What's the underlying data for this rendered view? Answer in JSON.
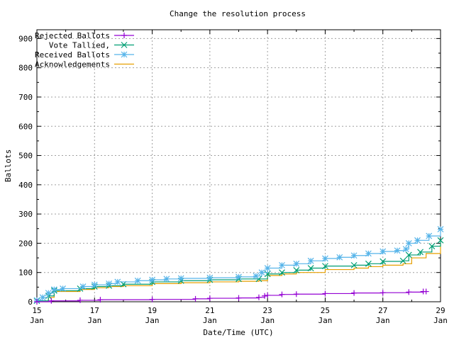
{
  "chart_data": {
    "type": "line",
    "title": "Change the resolution process",
    "xlabel": "Date/Time (UTC)",
    "ylabel": "Ballots",
    "ylim": [
      0,
      930
    ],
    "xlim": [
      "01-15 00:00",
      "01-29 00:00"
    ],
    "yticks": [
      0,
      100,
      200,
      300,
      400,
      500,
      600,
      700,
      800,
      900
    ],
    "xticks": [
      {
        "day": "15",
        "month": "Jan",
        "x": "01-15 00:00"
      },
      {
        "day": "17",
        "month": "Jan",
        "x": "01-17 00:00"
      },
      {
        "day": "19",
        "month": "Jan",
        "x": "01-19 00:00"
      },
      {
        "day": "21",
        "month": "Jan",
        "x": "01-21 00:00"
      },
      {
        "day": "23",
        "month": "Jan",
        "x": "01-23 00:00"
      },
      {
        "day": "25",
        "month": "Jan",
        "x": "01-25 00:00"
      },
      {
        "day": "27",
        "month": "Jan",
        "x": "01-27 00:00"
      },
      {
        "day": "29",
        "month": "Jan",
        "x": "01-29 00:00"
      }
    ],
    "grid": true,
    "legend_placement": "top-left",
    "series": [
      {
        "name": "Rejected Ballots",
        "color": "#9400d3",
        "marker": "plus",
        "points": [
          [
            "01-15 00:00",
            0
          ],
          [
            "01-15 12:00",
            3
          ],
          [
            "01-16 12:00",
            5
          ],
          [
            "01-17 04:48",
            7
          ],
          [
            "01-19 00:00",
            8
          ],
          [
            "01-20 12:00",
            10
          ],
          [
            "01-21 00:00",
            12
          ],
          [
            "01-22 00:00",
            13
          ],
          [
            "01-22 16:48",
            15
          ],
          [
            "01-22 21:36",
            20
          ],
          [
            "01-23 00:00",
            22
          ],
          [
            "01-23 12:00",
            25
          ],
          [
            "01-24 00:00",
            26
          ],
          [
            "01-25 00:00",
            28
          ],
          [
            "01-26 00:00",
            30
          ],
          [
            "01-27 00:00",
            31
          ],
          [
            "01-27 21:36",
            33
          ],
          [
            "01-28 09:36",
            35
          ],
          [
            "01-28 12:00",
            35
          ]
        ]
      },
      {
        "name": "Vote Tallied,",
        "color": "#009e73",
        "marker": "cross",
        "points": [
          [
            "01-15 00:00",
            3
          ],
          [
            "01-15 09:36",
            20
          ],
          [
            "01-15 14:24",
            38
          ],
          [
            "01-16 12:00",
            45
          ],
          [
            "01-17 00:00",
            52
          ],
          [
            "01-17 12:00",
            55
          ],
          [
            "01-18 00:00",
            60
          ],
          [
            "01-19 00:00",
            68
          ],
          [
            "01-20 00:00",
            72
          ],
          [
            "01-21 00:00",
            75
          ],
          [
            "01-22 00:00",
            78
          ],
          [
            "01-22 16:48",
            78
          ],
          [
            "01-23 00:00",
            95
          ],
          [
            "01-23 12:00",
            100
          ],
          [
            "01-24 00:00",
            108
          ],
          [
            "01-24 12:00",
            115
          ],
          [
            "01-25 00:00",
            122
          ],
          [
            "01-26 00:00",
            125
          ],
          [
            "01-26 12:00",
            130
          ],
          [
            "01-27 00:00",
            138
          ],
          [
            "01-27 16:48",
            140
          ],
          [
            "01-27 21:36",
            160
          ],
          [
            "01-28 07:12",
            170
          ],
          [
            "01-28 16:48",
            190
          ],
          [
            "01-29 00:00",
            210
          ]
        ]
      },
      {
        "name": "Received Ballots",
        "color": "#56b4e9",
        "marker": "star",
        "points": [
          [
            "01-15 00:00",
            5
          ],
          [
            "01-15 04:48",
            15
          ],
          [
            "01-15 09:36",
            30
          ],
          [
            "01-15 14:24",
            42
          ],
          [
            "01-15 21:36",
            45
          ],
          [
            "01-16 14:24",
            52
          ],
          [
            "01-17 00:00",
            58
          ],
          [
            "01-17 12:00",
            62
          ],
          [
            "01-17 19:12",
            68
          ],
          [
            "01-18 12:00",
            72
          ],
          [
            "01-19 00:00",
            75
          ],
          [
            "01-19 12:00",
            78
          ],
          [
            "01-20 00:00",
            80
          ],
          [
            "01-21 00:00",
            82
          ],
          [
            "01-22 00:00",
            85
          ],
          [
            "01-22 14:24",
            88
          ],
          [
            "01-22 19:12",
            100
          ],
          [
            "01-23 00:00",
            115
          ],
          [
            "01-23 12:00",
            125
          ],
          [
            "01-24 00:00",
            130
          ],
          [
            "01-24 12:00",
            140
          ],
          [
            "01-25 00:00",
            148
          ],
          [
            "01-25 12:00",
            152
          ],
          [
            "01-26 00:00",
            158
          ],
          [
            "01-26 12:00",
            165
          ],
          [
            "01-27 00:00",
            172
          ],
          [
            "01-27 12:00",
            175
          ],
          [
            "01-27 19:12",
            180
          ],
          [
            "01-27 21:36",
            200
          ],
          [
            "01-28 04:48",
            210
          ],
          [
            "01-28 14:24",
            225
          ],
          [
            "01-29 00:00",
            248
          ]
        ]
      },
      {
        "name": "Acknowledgements",
        "color": "#e69f00",
        "marker": "none",
        "points": [
          [
            "01-15 00:00",
            0
          ],
          [
            "01-15 09:36",
            15
          ],
          [
            "01-15 14:24",
            35
          ],
          [
            "01-16 12:00",
            42
          ],
          [
            "01-17 00:00",
            48
          ],
          [
            "01-17 12:00",
            52
          ],
          [
            "01-18 00:00",
            55
          ],
          [
            "01-19 00:00",
            62
          ],
          [
            "01-20 00:00",
            65
          ],
          [
            "01-21 00:00",
            68
          ],
          [
            "01-22 00:00",
            70
          ],
          [
            "01-22 16:48",
            72
          ],
          [
            "01-23 00:00",
            90
          ],
          [
            "01-23 12:00",
            95
          ],
          [
            "01-24 00:00",
            100
          ],
          [
            "01-25 00:00",
            110
          ],
          [
            "01-26 00:00",
            115
          ],
          [
            "01-26 12:00",
            120
          ],
          [
            "01-27 00:00",
            125
          ],
          [
            "01-27 16:48",
            130
          ],
          [
            "01-28 00:00",
            150
          ],
          [
            "01-28 12:00",
            165
          ],
          [
            "01-29 00:00",
            200
          ]
        ]
      }
    ]
  }
}
